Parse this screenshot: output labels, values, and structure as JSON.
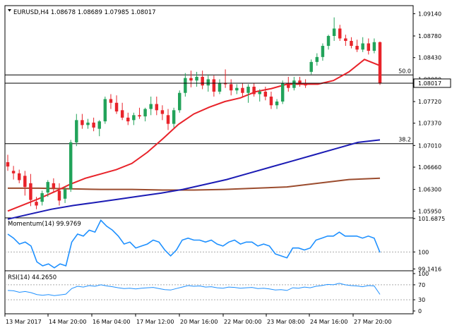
{
  "instrument": {
    "symbol": "EURUSD",
    "timeframe": "H4",
    "title_text": "EURUSD,H4  1.08678 1.08689 1.07985 1.08017",
    "last_price_label": "1.08017"
  },
  "colors": {
    "bull": "#22a35a",
    "bear": "#e8232a",
    "ma_red": "#e8232a",
    "ma_blue": "#1b1bb4",
    "ma_brown": "#9b4c2e",
    "indicator": "#1e90ff",
    "level": "#000000"
  },
  "chart_data": [
    {
      "type": "candlestick",
      "title": "EURUSD,H4  1.08678 1.08689 1.07985 1.08017",
      "ylim": [
        1.0584,
        1.0927
      ],
      "y_ticks": [
        "1.09140",
        "1.08780",
        "1.08430",
        "1.08080",
        "1.07720",
        "1.07370",
        "1.07010",
        "1.06660",
        "1.06300",
        "1.05950"
      ],
      "x_ticks": [
        "13 Mar 2017",
        "14 Mar 20:00",
        "16 Mar 04:00",
        "17 Mar 12:00",
        "20 Mar 16:00",
        "22 Mar 00:00",
        "23 Mar 08:00",
        "24 Mar 16:00",
        "27 Mar 20:00"
      ],
      "fib_levels": [
        {
          "label": "50.0",
          "value": 1.0815
        },
        {
          "label": "38.2",
          "value": 1.0704
        }
      ],
      "last_price": 1.08017,
      "candles": [
        {
          "o": 1.0674,
          "h": 1.0686,
          "l": 1.066,
          "c": 1.0667
        },
        {
          "o": 1.066,
          "h": 1.0668,
          "l": 1.0646,
          "c": 1.0656
        },
        {
          "o": 1.0656,
          "h": 1.0662,
          "l": 1.064,
          "c": 1.0645
        },
        {
          "o": 1.0652,
          "h": 1.066,
          "l": 1.062,
          "c": 1.0634
        },
        {
          "o": 1.064,
          "h": 1.0655,
          "l": 1.0603,
          "c": 1.0613
        },
        {
          "o": 1.061,
          "h": 1.0618,
          "l": 1.0598,
          "c": 1.0604
        },
        {
          "o": 1.061,
          "h": 1.0628,
          "l": 1.0604,
          "c": 1.0624
        },
        {
          "o": 1.0625,
          "h": 1.0645,
          "l": 1.0618,
          "c": 1.0642
        },
        {
          "o": 1.064,
          "h": 1.0648,
          "l": 1.0625,
          "c": 1.0632
        },
        {
          "o": 1.0628,
          "h": 1.064,
          "l": 1.0604,
          "c": 1.0612
        },
        {
          "o": 1.0615,
          "h": 1.0634,
          "l": 1.0608,
          "c": 1.063
        },
        {
          "o": 1.063,
          "h": 1.071,
          "l": 1.0626,
          "c": 1.0706
        },
        {
          "o": 1.0706,
          "h": 1.0752,
          "l": 1.07,
          "c": 1.0742
        },
        {
          "o": 1.0742,
          "h": 1.0752,
          "l": 1.0728,
          "c": 1.0734
        },
        {
          "o": 1.0734,
          "h": 1.0744,
          "l": 1.0728,
          "c": 1.0738
        },
        {
          "o": 1.0738,
          "h": 1.0746,
          "l": 1.0724,
          "c": 1.073
        },
        {
          "o": 1.0728,
          "h": 1.0742,
          "l": 1.0716,
          "c": 1.074
        },
        {
          "o": 1.074,
          "h": 1.078,
          "l": 1.0736,
          "c": 1.0776
        },
        {
          "o": 1.0776,
          "h": 1.0784,
          "l": 1.076,
          "c": 1.077
        },
        {
          "o": 1.077,
          "h": 1.0782,
          "l": 1.0752,
          "c": 1.0756
        },
        {
          "o": 1.0758,
          "h": 1.077,
          "l": 1.0742,
          "c": 1.0746
        },
        {
          "o": 1.0746,
          "h": 1.0754,
          "l": 1.0734,
          "c": 1.074
        },
        {
          "o": 1.0742,
          "h": 1.0754,
          "l": 1.0734,
          "c": 1.075
        },
        {
          "o": 1.075,
          "h": 1.0762,
          "l": 1.0744,
          "c": 1.0748
        },
        {
          "o": 1.0748,
          "h": 1.0762,
          "l": 1.074,
          "c": 1.076
        },
        {
          "o": 1.076,
          "h": 1.078,
          "l": 1.075,
          "c": 1.0768
        },
        {
          "o": 1.0768,
          "h": 1.078,
          "l": 1.075,
          "c": 1.0758
        },
        {
          "o": 1.0758,
          "h": 1.0766,
          "l": 1.0742,
          "c": 1.0752
        },
        {
          "o": 1.075,
          "h": 1.076,
          "l": 1.0726,
          "c": 1.0736
        },
        {
          "o": 1.0736,
          "h": 1.0762,
          "l": 1.073,
          "c": 1.0758
        },
        {
          "o": 1.0758,
          "h": 1.079,
          "l": 1.0754,
          "c": 1.0786
        },
        {
          "o": 1.0786,
          "h": 1.0818,
          "l": 1.078,
          "c": 1.081
        },
        {
          "o": 1.081,
          "h": 1.0822,
          "l": 1.0795,
          "c": 1.0806
        },
        {
          "o": 1.0806,
          "h": 1.082,
          "l": 1.0796,
          "c": 1.0812
        },
        {
          "o": 1.0812,
          "h": 1.0822,
          "l": 1.0792,
          "c": 1.0798
        },
        {
          "o": 1.0798,
          "h": 1.0816,
          "l": 1.0788,
          "c": 1.0808
        },
        {
          "o": 1.0808,
          "h": 1.0814,
          "l": 1.078,
          "c": 1.0788
        },
        {
          "o": 1.0788,
          "h": 1.0808,
          "l": 1.0784,
          "c": 1.0802
        },
        {
          "o": 1.0802,
          "h": 1.0824,
          "l": 1.0794,
          "c": 1.08
        },
        {
          "o": 1.08,
          "h": 1.0808,
          "l": 1.0782,
          "c": 1.079
        },
        {
          "o": 1.079,
          "h": 1.08,
          "l": 1.0784,
          "c": 1.0794
        },
        {
          "o": 1.0794,
          "h": 1.0802,
          "l": 1.078,
          "c": 1.0786
        },
        {
          "o": 1.0786,
          "h": 1.08,
          "l": 1.077,
          "c": 1.0796
        },
        {
          "o": 1.0796,
          "h": 1.0802,
          "l": 1.078,
          "c": 1.0784
        },
        {
          "o": 1.0784,
          "h": 1.0792,
          "l": 1.0772,
          "c": 1.0788
        },
        {
          "o": 1.0788,
          "h": 1.0796,
          "l": 1.0774,
          "c": 1.078
        },
        {
          "o": 1.078,
          "h": 1.0788,
          "l": 1.076,
          "c": 1.0766
        },
        {
          "o": 1.0766,
          "h": 1.0776,
          "l": 1.076,
          "c": 1.0772
        },
        {
          "o": 1.0772,
          "h": 1.0806,
          "l": 1.0768,
          "c": 1.0802
        },
        {
          "o": 1.0802,
          "h": 1.0812,
          "l": 1.0788,
          "c": 1.0794
        },
        {
          "o": 1.0794,
          "h": 1.0812,
          "l": 1.079,
          "c": 1.0806
        },
        {
          "o": 1.0806,
          "h": 1.0812,
          "l": 1.0796,
          "c": 1.0802
        },
        {
          "o": 1.0802,
          "h": 1.0808,
          "l": 1.0794,
          "c": 1.0798
        },
        {
          "o": 1.082,
          "h": 1.084,
          "l": 1.0816,
          "c": 1.0836
        },
        {
          "o": 1.0836,
          "h": 1.085,
          "l": 1.083,
          "c": 1.0844
        },
        {
          "o": 1.0844,
          "h": 1.0866,
          "l": 1.0838,
          "c": 1.0862
        },
        {
          "o": 1.0862,
          "h": 1.088,
          "l": 1.0856,
          "c": 1.0878
        },
        {
          "o": 1.0878,
          "h": 1.0908,
          "l": 1.087,
          "c": 1.089
        },
        {
          "o": 1.089,
          "h": 1.0896,
          "l": 1.087,
          "c": 1.0874
        },
        {
          "o": 1.0874,
          "h": 1.088,
          "l": 1.0862,
          "c": 1.087
        },
        {
          "o": 1.087,
          "h": 1.0876,
          "l": 1.0858,
          "c": 1.0862
        },
        {
          "o": 1.0862,
          "h": 1.0872,
          "l": 1.0852,
          "c": 1.0856
        },
        {
          "o": 1.0856,
          "h": 1.0876,
          "l": 1.0852,
          "c": 1.0866
        },
        {
          "o": 1.0866,
          "h": 1.0874,
          "l": 1.0848,
          "c": 1.0854
        },
        {
          "o": 1.0854,
          "h": 1.0874,
          "l": 1.085,
          "c": 1.0868
        },
        {
          "o": 1.0868,
          "h": 1.0869,
          "l": 1.0799,
          "c": 1.0802
        }
      ],
      "ma_red": [
        1.0595,
        1.0605,
        1.0615,
        1.0626,
        1.0638,
        1.0648,
        1.0655,
        1.0662,
        1.0672,
        1.069,
        1.0712,
        1.0735,
        1.0752,
        1.0763,
        1.0772,
        1.0778,
        1.0788,
        1.0793,
        1.08,
        1.08,
        1.08,
        1.0806,
        1.082,
        1.084,
        1.083
      ],
      "ma_blue": [
        1.0582,
        1.059,
        1.0598,
        1.0604,
        1.0609,
        1.0614,
        1.0619,
        1.0624,
        1.063,
        1.0638,
        1.0646,
        1.0656,
        1.0666,
        1.0676,
        1.0686,
        1.0696,
        1.0706,
        1.071
      ],
      "ma_brown": [
        1.0632,
        1.0632,
        1.0631,
        1.063,
        1.063,
        1.0629,
        1.0629,
        1.063,
        1.0632,
        1.0634,
        1.064,
        1.0646,
        1.0648
      ],
      "series": [
        {
          "name": "ma_red"
        },
        {
          "name": "ma_blue"
        },
        {
          "name": "ma_brown"
        }
      ]
    },
    {
      "type": "line",
      "title": "Momentum(14) 99.9769",
      "ylim": [
        99.05,
        101.72
      ],
      "y_ticks": [
        "101.6875",
        "100",
        "99.1416"
      ],
      "reference": 100,
      "values": [
        100.9,
        100.7,
        100.4,
        100.5,
        100.3,
        99.5,
        99.3,
        99.4,
        99.2,
        99.4,
        99.3,
        100.5,
        100.9,
        100.8,
        101.1,
        101.0,
        101.6,
        101.3,
        101.1,
        100.8,
        100.4,
        100.5,
        100.2,
        100.3,
        100.4,
        100.6,
        100.5,
        100.1,
        99.8,
        100.1,
        100.6,
        100.7,
        100.6,
        100.6,
        100.5,
        100.6,
        100.4,
        100.3,
        100.5,
        100.6,
        100.4,
        100.5,
        100.5,
        100.3,
        100.4,
        100.3,
        99.9,
        99.8,
        99.7,
        100.2,
        100.2,
        100.1,
        100.2,
        100.6,
        100.7,
        100.8,
        100.8,
        101.0,
        100.8,
        100.8,
        100.8,
        100.7,
        100.8,
        100.7,
        99.9769
      ]
    },
    {
      "type": "line",
      "title": "RSI(14) 44.2650",
      "ylim": [
        0,
        100
      ],
      "y_ticks": [
        "100",
        "70",
        "30",
        "0"
      ],
      "reference_levels": [
        70,
        30
      ],
      "values": [
        55,
        54,
        50,
        52,
        49,
        44,
        42,
        44,
        41,
        43,
        45,
        60,
        66,
        64,
        68,
        66,
        70,
        67,
        65,
        62,
        60,
        61,
        59,
        61,
        62,
        63,
        60,
        57,
        56,
        60,
        64,
        68,
        66,
        67,
        64,
        65,
        62,
        61,
        64,
        63,
        61,
        62,
        63,
        60,
        61,
        59,
        56,
        57,
        55,
        62,
        61,
        64,
        62,
        66,
        68,
        71,
        70,
        74,
        70,
        68,
        67,
        65,
        68,
        67,
        44.265
      ]
    }
  ]
}
